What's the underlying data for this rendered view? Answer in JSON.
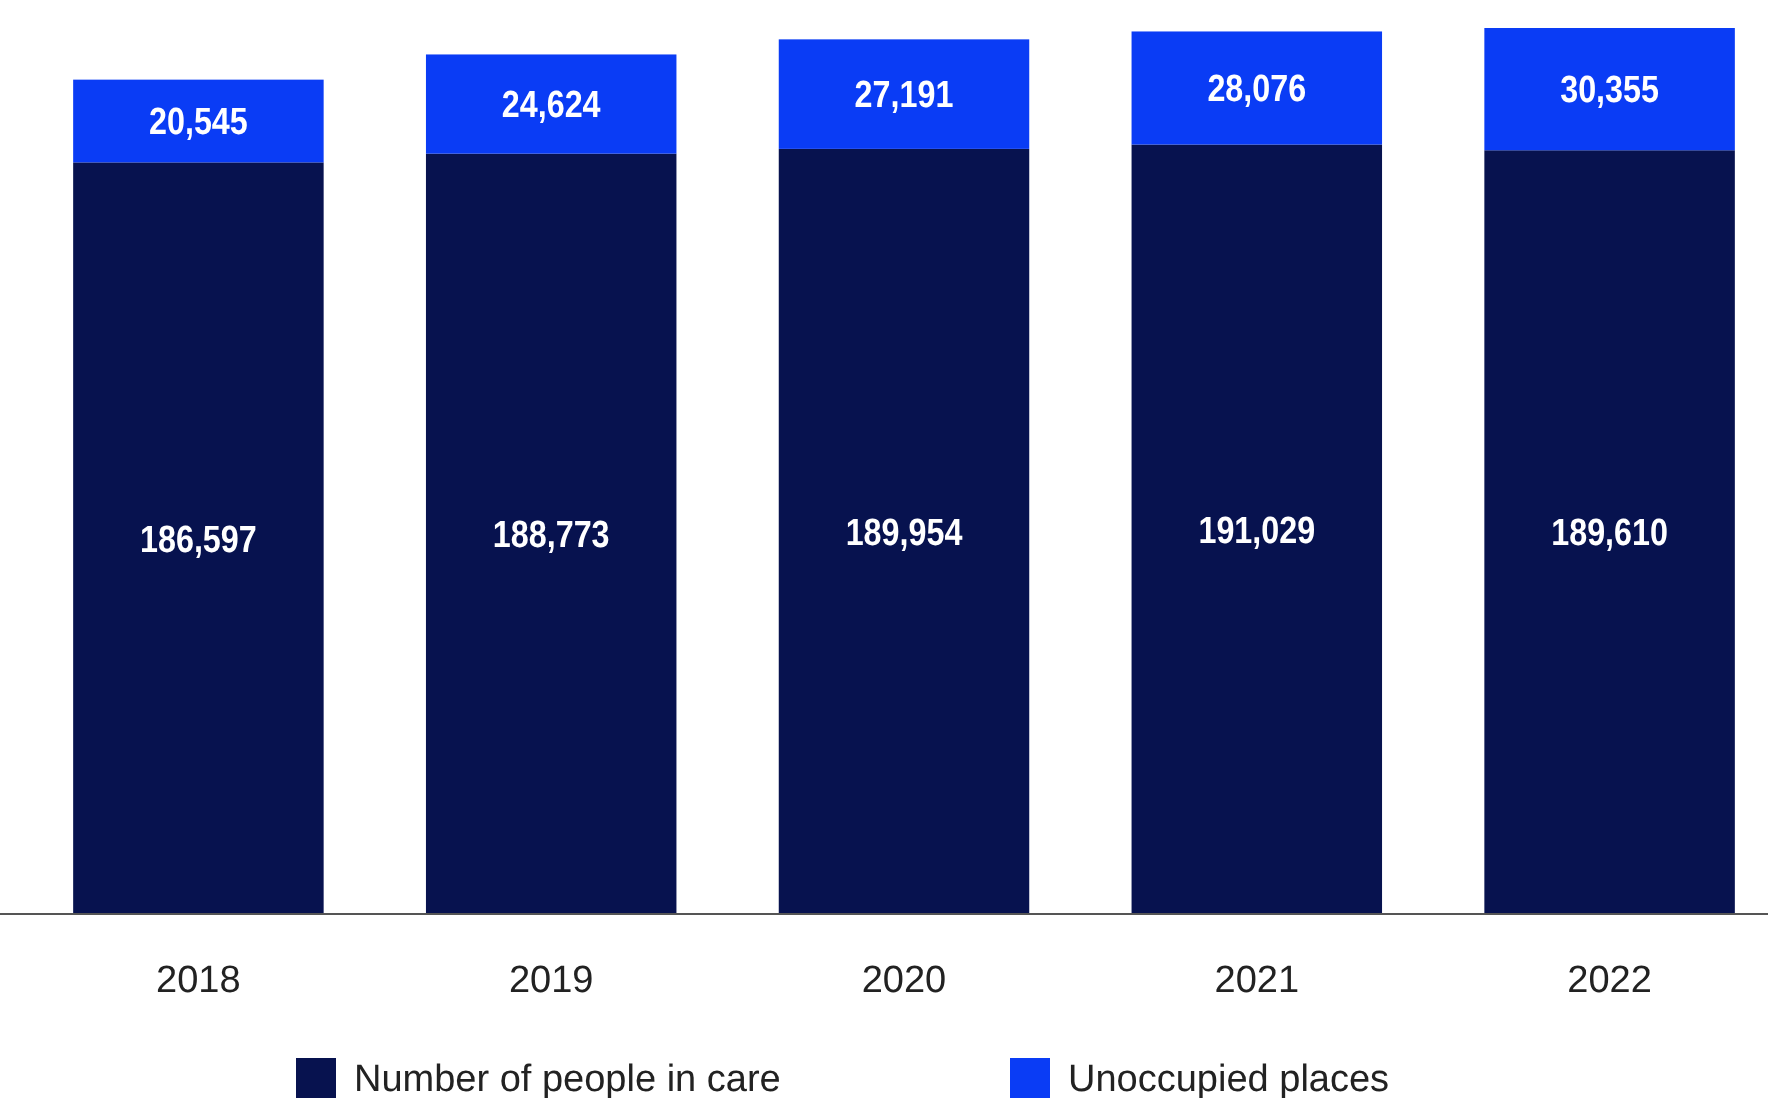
{
  "chart_data": {
    "type": "bar",
    "stacked": true,
    "legend": "bottom",
    "categories": [
      "2018",
      "2019",
      "2020",
      "2021",
      "2022"
    ],
    "series": [
      {
        "name": "Number of people in care",
        "color": "#07124f",
        "values": [
          186597,
          188773,
          189954,
          191029,
          189610
        ],
        "value_labels": [
          "186,597",
          "188,773",
          "189,954",
          "191,029",
          "189,610"
        ]
      },
      {
        "name": "Unoccupied places",
        "color": "#0a3cf5",
        "values": [
          20545,
          24624,
          27191,
          28076,
          30355
        ],
        "value_labels": [
          "20,545",
          "24,624",
          "27,191",
          "28,076",
          "30,355"
        ]
      }
    ]
  }
}
